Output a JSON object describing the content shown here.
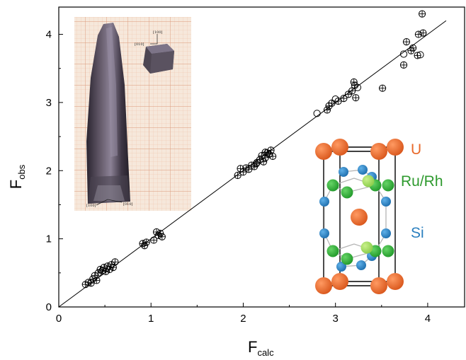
{
  "chart_data": {
    "type": "scatter",
    "xlabel_main": "F",
    "xlabel_sub": "calc",
    "ylabel_main": "F",
    "ylabel_sub": "obs",
    "xlim": [
      0,
      4.4
    ],
    "ylim": [
      0,
      4.4
    ],
    "x_ticks": [
      0,
      1,
      2,
      3,
      4
    ],
    "y_ticks": [
      0,
      1,
      2,
      3,
      4
    ],
    "grid": false,
    "marker_styles": [
      "crossed-circle",
      "open-circle"
    ],
    "points": [
      {
        "x": 0.29,
        "y": 0.33,
        "m": "c"
      },
      {
        "x": 0.32,
        "y": 0.36,
        "m": "c"
      },
      {
        "x": 0.35,
        "y": 0.35,
        "m": "c"
      },
      {
        "x": 0.37,
        "y": 0.41,
        "m": "c"
      },
      {
        "x": 0.39,
        "y": 0.46,
        "m": "c"
      },
      {
        "x": 0.41,
        "y": 0.39,
        "m": "c"
      },
      {
        "x": 0.43,
        "y": 0.5,
        "m": "c"
      },
      {
        "x": 0.45,
        "y": 0.55,
        "m": "c"
      },
      {
        "x": 0.47,
        "y": 0.53,
        "m": "c"
      },
      {
        "x": 0.49,
        "y": 0.58,
        "m": "c"
      },
      {
        "x": 0.51,
        "y": 0.52,
        "m": "c"
      },
      {
        "x": 0.53,
        "y": 0.6,
        "m": "c"
      },
      {
        "x": 0.55,
        "y": 0.55,
        "m": "c"
      },
      {
        "x": 0.57,
        "y": 0.62,
        "m": "c"
      },
      {
        "x": 0.59,
        "y": 0.58,
        "m": "c"
      },
      {
        "x": 0.61,
        "y": 0.66,
        "m": "c"
      },
      {
        "x": 0.91,
        "y": 0.93,
        "m": "c"
      },
      {
        "x": 0.93,
        "y": 0.9,
        "m": "c"
      },
      {
        "x": 0.95,
        "y": 0.95,
        "m": "c"
      },
      {
        "x": 1.03,
        "y": 0.98,
        "m": "c"
      },
      {
        "x": 1.06,
        "y": 1.1,
        "m": "c"
      },
      {
        "x": 1.08,
        "y": 1.05,
        "m": "c"
      },
      {
        "x": 1.1,
        "y": 1.08,
        "m": "c"
      },
      {
        "x": 1.12,
        "y": 1.03,
        "m": "c"
      },
      {
        "x": 1.94,
        "y": 1.93,
        "m": "c"
      },
      {
        "x": 1.97,
        "y": 2.03,
        "m": "c"
      },
      {
        "x": 2.0,
        "y": 1.98,
        "m": "c"
      },
      {
        "x": 2.03,
        "y": 2.04,
        "m": "c"
      },
      {
        "x": 2.06,
        "y": 2.02,
        "m": "c"
      },
      {
        "x": 2.09,
        "y": 2.08,
        "m": "c"
      },
      {
        "x": 2.12,
        "y": 2.06,
        "m": "c"
      },
      {
        "x": 2.15,
        "y": 2.12,
        "m": "c"
      },
      {
        "x": 2.18,
        "y": 2.16,
        "m": "c"
      },
      {
        "x": 2.2,
        "y": 2.22,
        "m": "c"
      },
      {
        "x": 2.22,
        "y": 2.13,
        "m": "c"
      },
      {
        "x": 2.24,
        "y": 2.19,
        "m": "c"
      },
      {
        "x": 2.26,
        "y": 2.26,
        "m": "c"
      },
      {
        "x": 2.28,
        "y": 2.24,
        "m": "c"
      },
      {
        "x": 2.3,
        "y": 2.3,
        "m": "c"
      },
      {
        "x": 2.32,
        "y": 2.21,
        "m": "c"
      },
      {
        "x": 2.14,
        "y": 2.1,
        "m": "c"
      },
      {
        "x": 2.24,
        "y": 2.27,
        "m": "c"
      },
      {
        "x": 2.8,
        "y": 2.84,
        "m": "o"
      },
      {
        "x": 2.91,
        "y": 2.89,
        "m": "c"
      },
      {
        "x": 2.93,
        "y": 2.95,
        "m": "c"
      },
      {
        "x": 2.96,
        "y": 2.99,
        "m": "c"
      },
      {
        "x": 3.0,
        "y": 3.05,
        "m": "o"
      },
      {
        "x": 3.03,
        "y": 3.02,
        "m": "c"
      },
      {
        "x": 3.09,
        "y": 3.06,
        "m": "c"
      },
      {
        "x": 3.14,
        "y": 3.12,
        "m": "c"
      },
      {
        "x": 3.18,
        "y": 3.17,
        "m": "c"
      },
      {
        "x": 3.2,
        "y": 3.3,
        "m": "c"
      },
      {
        "x": 3.21,
        "y": 3.25,
        "m": "c"
      },
      {
        "x": 3.24,
        "y": 3.22,
        "m": "o"
      },
      {
        "x": 3.22,
        "y": 3.07,
        "m": "c"
      },
      {
        "x": 3.51,
        "y": 3.21,
        "m": "c"
      },
      {
        "x": 3.74,
        "y": 3.55,
        "m": "c"
      },
      {
        "x": 3.74,
        "y": 3.71,
        "m": "o"
      },
      {
        "x": 3.77,
        "y": 3.89,
        "m": "c"
      },
      {
        "x": 3.82,
        "y": 3.76,
        "m": "c"
      },
      {
        "x": 3.84,
        "y": 3.8,
        "m": "c"
      },
      {
        "x": 3.89,
        "y": 3.69,
        "m": "c"
      },
      {
        "x": 3.92,
        "y": 3.7,
        "m": "o"
      },
      {
        "x": 3.9,
        "y": 4.0,
        "m": "c"
      },
      {
        "x": 3.95,
        "y": 4.02,
        "m": "c"
      },
      {
        "x": 3.94,
        "y": 4.3,
        "m": "c"
      }
    ],
    "fit_line": {
      "x": [
        0,
        4.2
      ],
      "y": [
        0,
        4.2
      ]
    }
  },
  "inset_photo": {
    "direction_labels": [
      "[100]",
      "[010]",
      "[100]",
      "[010]"
    ]
  },
  "crystal_structure": {
    "labels": [
      {
        "text": "U",
        "color": "#e8692a"
      },
      {
        "text": "Ru/Rh",
        "color": "#2e9a2e"
      },
      {
        "text": "Si",
        "color": "#2a7fbf"
      }
    ]
  },
  "colors": {
    "U": "#e8692a",
    "RuRh": "#2faa2f",
    "Si": "#2b7fc4",
    "photo_grid_bg": "#f3e3d4",
    "photo_grid_line": "#e2a78a"
  }
}
